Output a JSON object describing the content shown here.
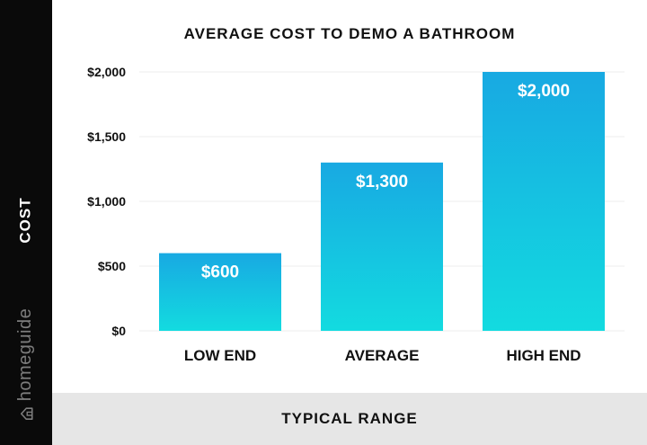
{
  "brand": {
    "name": "homeguide",
    "icon": "house-icon"
  },
  "colors": {
    "bar_top": "#18a9e2",
    "bar_bottom": "#13dbe0",
    "sidebar": "#0a0a0a",
    "band": "#e6e6e6",
    "grid": "#eeeeee",
    "label": "#ffffff",
    "text": "#111111"
  },
  "chart_data": {
    "type": "bar",
    "title": "AVERAGE COST TO DEMO A BATHROOM",
    "xlabel": "TYPICAL RANGE",
    "ylabel": "COST",
    "categories": [
      "LOW END",
      "AVERAGE",
      "HIGH END"
    ],
    "values": [
      600,
      1300,
      2000
    ],
    "value_labels": [
      "$600",
      "$1,300",
      "$2,000"
    ],
    "ylim": [
      0,
      2000
    ],
    "yticks": [
      0,
      500,
      1000,
      1500,
      2000
    ],
    "ytick_labels": [
      "$0",
      "$500",
      "$1,000",
      "$1,500",
      "$2,000"
    ],
    "grid": true,
    "legend": false
  }
}
